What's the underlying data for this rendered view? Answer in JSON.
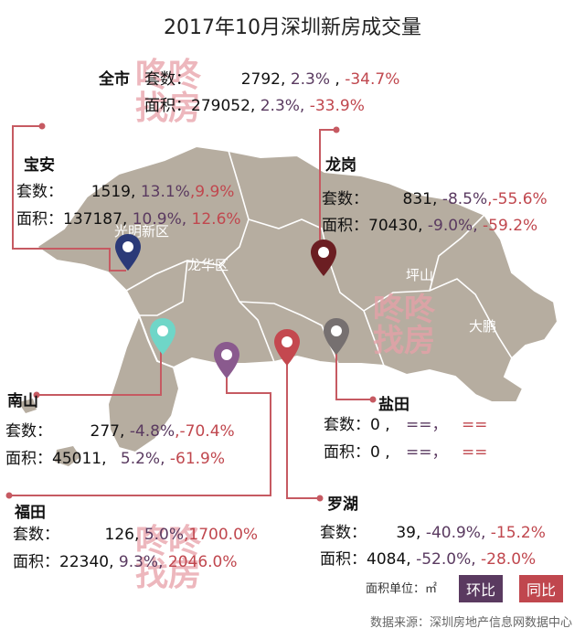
{
  "title": "2017年10月深圳新房成交量",
  "colors": {
    "map_fill": "#b6ada0",
    "map_border": "#ffffff",
    "line": "#c65a62",
    "hb": "#5a3a60",
    "tb": "#c0474e",
    "watermark": "#e8a0a8"
  },
  "watermark_text": [
    "咚咚",
    "找房"
  ],
  "region_labels": [
    "光明新区",
    "龙华区",
    "坪山",
    "大鹏"
  ],
  "pins": {
    "baoan": {
      "icon": "location-pin-icon",
      "color": "#2b3a78"
    },
    "longgang": {
      "icon": "location-pin-icon",
      "color": "#6b1e22"
    },
    "nanshan": {
      "icon": "location-pin-icon",
      "color": "#6fd6c8"
    },
    "futian": {
      "icon": "location-pin-icon",
      "color": "#8a5a8e"
    },
    "luohu": {
      "icon": "location-pin-icon",
      "color": "#c4484f"
    },
    "yantian": {
      "icon": "location-pin-icon",
      "color": "#767070"
    }
  },
  "citywide": {
    "name": "全市",
    "sets_label": "套数：",
    "sets": "2792,",
    "sets_mom": "2.3%",
    "sets_sep": " ,",
    "sets_yoy": "-34.7%",
    "area_label": "面积：",
    "area": "279052,",
    "area_mom": "2.3%,",
    "area_yoy": "-33.9%"
  },
  "districts": {
    "baoan": {
      "name": "宝安",
      "sets_label": "套数：",
      "sets": "1519,",
      "sets_mom": "13.1%",
      "sets_yoy": ",9.9%",
      "area_label": "面积：",
      "area": "137187,",
      "area_mom": "10.9%,",
      "area_yoy": "12.6%"
    },
    "longgang": {
      "name": "龙岗",
      "sets_label": "套数：",
      "sets": "831,",
      "sets_mom": "-8.5%",
      "sets_yoy": ",-55.6%",
      "area_label": "面积：",
      "area": "70430,",
      "area_mom": "-9.0%,",
      "area_yoy": "-59.2%"
    },
    "nanshan": {
      "name": "南山",
      "sets_label": "套数：",
      "sets": "277,",
      "sets_mom": "-4.8%",
      "sets_yoy": ",-70.4%",
      "area_label": "面积：",
      "area": "45011,",
      "area_mom": "5.2%,",
      "area_yoy": "-61.9%"
    },
    "yantian": {
      "name": "盐田",
      "sets_label": "套数：",
      "sets": "0 ,",
      "sets_mom": "==，",
      "sets_yoy": "==",
      "area_label": "面积：",
      "area": "0 ,",
      "area_mom": "==，",
      "area_yoy": "=="
    },
    "luohu": {
      "name": "罗湖",
      "sets_label": "套数：",
      "sets": "39,",
      "sets_mom": "-40.9%,",
      "sets_yoy": "-15.2%",
      "area_label": "面积：",
      "area": "4084,",
      "area_mom": "-52.0%,",
      "area_yoy": "-28.0%"
    },
    "futian": {
      "name": "福田",
      "sets_label": "套数：",
      "sets": "126,",
      "sets_mom": "5.0%",
      "sets_yoy": ",1700.0%",
      "area_label": "面积：",
      "area": "22340,",
      "area_mom": "9.3%,",
      "area_yoy": "2046.0%"
    }
  },
  "legend": {
    "unit": "面积单位：㎡",
    "mom": "环比",
    "yoy": "同比",
    "mom_color": "#5a3a60",
    "yoy_color": "#c0474e"
  },
  "source": "数据来源：深圳房地产信息网数据中心"
}
